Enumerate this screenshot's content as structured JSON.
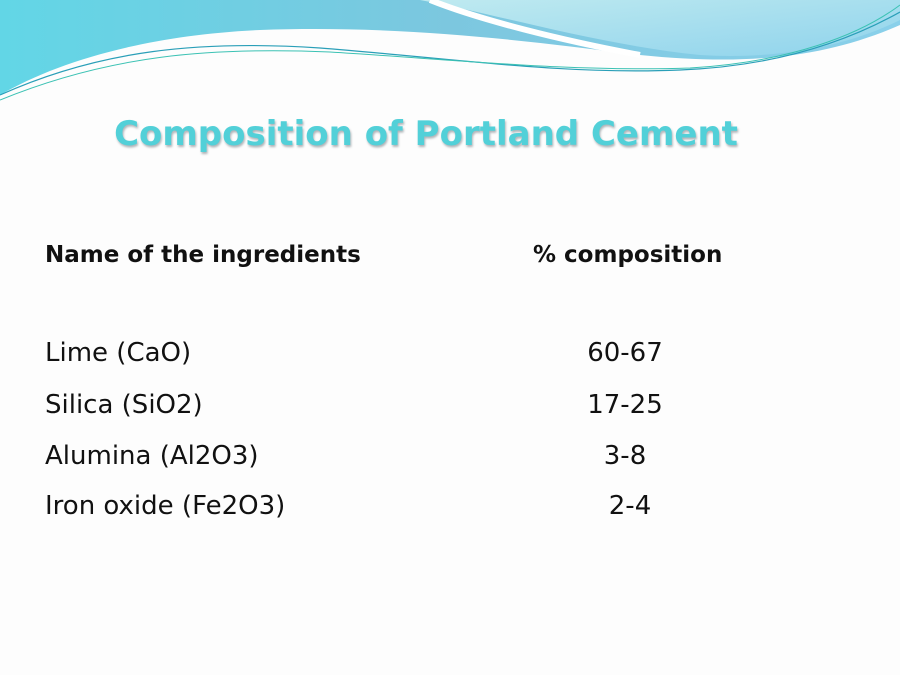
{
  "slide": {
    "title": "Composition of Portland Cement",
    "table": {
      "headers": [
        "Name of the ingredients",
        "% composition"
      ],
      "rows": [
        {
          "name": "Lime (CaO)",
          "value": "60-67"
        },
        {
          "name": "Silica (SiO2)",
          "value": "17-25"
        },
        {
          "name": "Alumina (Al2O3)",
          "value": "3-8"
        },
        {
          "name": "Iron oxide (Fe2O3)",
          "value": "2-4"
        }
      ]
    },
    "colors": {
      "title": "#52d0d8",
      "wave_dark": "#5bbfd8",
      "wave_light": "#a8e3ec"
    }
  }
}
